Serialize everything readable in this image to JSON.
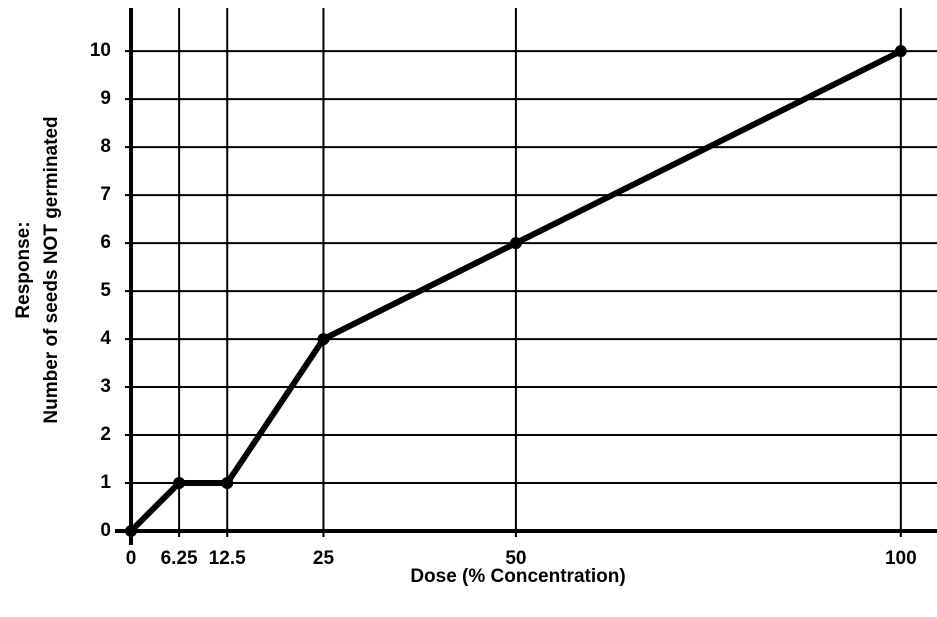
{
  "chart_data": {
    "type": "line",
    "xlabel": "Dose (% Concentration)",
    "ylabel": [
      "Response:",
      "Number of seeds NOT germinated"
    ],
    "x": [
      0,
      6.25,
      12.5,
      25,
      50,
      100
    ],
    "series": [
      {
        "color": "#000000",
        "values": [
          0,
          1,
          1,
          4,
          6,
          10
        ]
      }
    ],
    "xlim": [
      0,
      104.7
    ],
    "xticks": [
      0,
      6.25,
      12.5,
      25,
      50,
      100
    ],
    "ylim": [
      0,
      10.9
    ],
    "yticks": [
      0,
      1,
      2,
      3,
      4,
      5,
      6,
      7,
      8,
      9,
      10
    ],
    "grid": true
  }
}
